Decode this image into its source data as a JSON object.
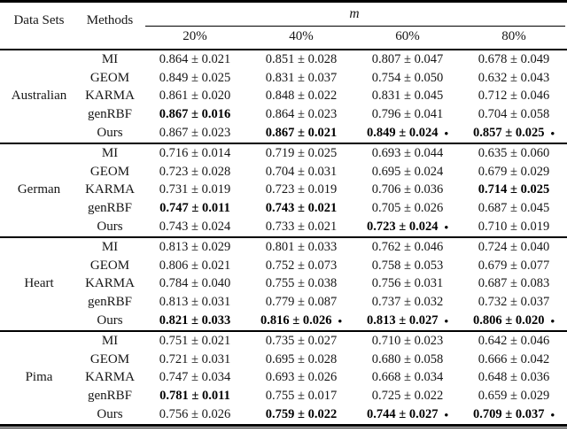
{
  "table": {
    "corner_headers": [
      "Data Sets",
      "Methods"
    ],
    "group_header": "m",
    "col_headers": [
      "20%",
      "40%",
      "60%",
      "80%"
    ],
    "dot_symbol": "•",
    "blocks": [
      {
        "dataset": "Australian",
        "rows": [
          {
            "method": "MI",
            "cells": [
              {
                "text": "0.864 ± 0.021",
                "bold": false,
                "dot": false
              },
              {
                "text": "0.851 ± 0.028",
                "bold": false,
                "dot": false
              },
              {
                "text": "0.807 ± 0.047",
                "bold": false,
                "dot": false
              },
              {
                "text": "0.678 ± 0.049",
                "bold": false,
                "dot": false
              }
            ]
          },
          {
            "method": "GEOM",
            "cells": [
              {
                "text": "0.849 ± 0.025",
                "bold": false,
                "dot": false
              },
              {
                "text": "0.831 ± 0.037",
                "bold": false,
                "dot": false
              },
              {
                "text": "0.754 ± 0.050",
                "bold": false,
                "dot": false
              },
              {
                "text": "0.632 ± 0.043",
                "bold": false,
                "dot": false
              }
            ]
          },
          {
            "method": "KARMA",
            "cells": [
              {
                "text": "0.861 ± 0.020",
                "bold": false,
                "dot": false
              },
              {
                "text": "0.848 ± 0.022",
                "bold": false,
                "dot": false
              },
              {
                "text": "0.831 ± 0.045",
                "bold": false,
                "dot": false
              },
              {
                "text": "0.712 ± 0.046",
                "bold": false,
                "dot": false
              }
            ]
          },
          {
            "method": "genRBF",
            "cells": [
              {
                "text": "0.867 ± 0.016",
                "bold": true,
                "dot": false
              },
              {
                "text": "0.864 ± 0.023",
                "bold": false,
                "dot": false
              },
              {
                "text": "0.796 ± 0.041",
                "bold": false,
                "dot": false
              },
              {
                "text": "0.704 ± 0.058",
                "bold": false,
                "dot": false
              }
            ]
          },
          {
            "method": "Ours",
            "cells": [
              {
                "text": "0.867 ± 0.023",
                "bold": false,
                "dot": false
              },
              {
                "text": "0.867 ± 0.021",
                "bold": true,
                "dot": false
              },
              {
                "text": "0.849 ± 0.024",
                "bold": true,
                "dot": true
              },
              {
                "text": "0.857 ± 0.025",
                "bold": true,
                "dot": true
              }
            ]
          }
        ]
      },
      {
        "dataset": "German",
        "rows": [
          {
            "method": "MI",
            "cells": [
              {
                "text": "0.716 ± 0.014",
                "bold": false,
                "dot": false
              },
              {
                "text": "0.719 ± 0.025",
                "bold": false,
                "dot": false
              },
              {
                "text": "0.693 ± 0.044",
                "bold": false,
                "dot": false
              },
              {
                "text": "0.635 ± 0.060",
                "bold": false,
                "dot": false
              }
            ]
          },
          {
            "method": "GEOM",
            "cells": [
              {
                "text": "0.723 ± 0.028",
                "bold": false,
                "dot": false
              },
              {
                "text": "0.704 ± 0.031",
                "bold": false,
                "dot": false
              },
              {
                "text": "0.695 ± 0.024",
                "bold": false,
                "dot": false
              },
              {
                "text": "0.679 ± 0.029",
                "bold": false,
                "dot": false
              }
            ]
          },
          {
            "method": "KARMA",
            "cells": [
              {
                "text": "0.731 ± 0.019",
                "bold": false,
                "dot": false
              },
              {
                "text": "0.723 ± 0.019",
                "bold": false,
                "dot": false
              },
              {
                "text": "0.706 ± 0.036",
                "bold": false,
                "dot": false
              },
              {
                "text": "0.714 ± 0.025",
                "bold": true,
                "dot": false
              }
            ]
          },
          {
            "method": "genRBF",
            "cells": [
              {
                "text": "0.747 ± 0.011",
                "bold": true,
                "dot": false
              },
              {
                "text": "0.743 ± 0.021",
                "bold": true,
                "dot": false
              },
              {
                "text": "0.705 ± 0.026",
                "bold": false,
                "dot": false
              },
              {
                "text": "0.687 ± 0.045",
                "bold": false,
                "dot": false
              }
            ]
          },
          {
            "method": "Ours",
            "cells": [
              {
                "text": "0.743 ± 0.024",
                "bold": false,
                "dot": false
              },
              {
                "text": "0.733 ± 0.021",
                "bold": false,
                "dot": false
              },
              {
                "text": "0.723 ± 0.024",
                "bold": true,
                "dot": true
              },
              {
                "text": "0.710 ± 0.019",
                "bold": false,
                "dot": false
              }
            ]
          }
        ]
      },
      {
        "dataset": "Heart",
        "rows": [
          {
            "method": "MI",
            "cells": [
              {
                "text": "0.813 ± 0.029",
                "bold": false,
                "dot": false
              },
              {
                "text": "0.801 ± 0.033",
                "bold": false,
                "dot": false
              },
              {
                "text": "0.762 ± 0.046",
                "bold": false,
                "dot": false
              },
              {
                "text": "0.724 ± 0.040",
                "bold": false,
                "dot": false
              }
            ]
          },
          {
            "method": "GEOM",
            "cells": [
              {
                "text": "0.806 ± 0.021",
                "bold": false,
                "dot": false
              },
              {
                "text": "0.752 ± 0.073",
                "bold": false,
                "dot": false
              },
              {
                "text": "0.758 ± 0.053",
                "bold": false,
                "dot": false
              },
              {
                "text": "0.679 ± 0.077",
                "bold": false,
                "dot": false
              }
            ]
          },
          {
            "method": "KARMA",
            "cells": [
              {
                "text": "0.784 ± 0.040",
                "bold": false,
                "dot": false
              },
              {
                "text": "0.755 ± 0.038",
                "bold": false,
                "dot": false
              },
              {
                "text": "0.756 ± 0.031",
                "bold": false,
                "dot": false
              },
              {
                "text": "0.687 ± 0.083",
                "bold": false,
                "dot": false
              }
            ]
          },
          {
            "method": "genRBF",
            "cells": [
              {
                "text": "0.813 ± 0.031",
                "bold": false,
                "dot": false
              },
              {
                "text": "0.779 ± 0.087",
                "bold": false,
                "dot": false
              },
              {
                "text": "0.737 ± 0.032",
                "bold": false,
                "dot": false
              },
              {
                "text": "0.732 ± 0.037",
                "bold": false,
                "dot": false
              }
            ]
          },
          {
            "method": "Ours",
            "cells": [
              {
                "text": "0.821 ± 0.033",
                "bold": true,
                "dot": false
              },
              {
                "text": "0.816 ± 0.026",
                "bold": true,
                "dot": true
              },
              {
                "text": "0.813 ± 0.027",
                "bold": true,
                "dot": true
              },
              {
                "text": "0.806 ± 0.020",
                "bold": true,
                "dot": true
              }
            ]
          }
        ]
      },
      {
        "dataset": "Pima",
        "rows": [
          {
            "method": "MI",
            "cells": [
              {
                "text": "0.751 ± 0.021",
                "bold": false,
                "dot": false
              },
              {
                "text": "0.735 ± 0.027",
                "bold": false,
                "dot": false
              },
              {
                "text": "0.710 ± 0.023",
                "bold": false,
                "dot": false
              },
              {
                "text": "0.642 ± 0.046",
                "bold": false,
                "dot": false
              }
            ]
          },
          {
            "method": "GEOM",
            "cells": [
              {
                "text": "0.721 ± 0.031",
                "bold": false,
                "dot": false
              },
              {
                "text": "0.695 ± 0.028",
                "bold": false,
                "dot": false
              },
              {
                "text": "0.680 ± 0.058",
                "bold": false,
                "dot": false
              },
              {
                "text": "0.666 ± 0.042",
                "bold": false,
                "dot": false
              }
            ]
          },
          {
            "method": "KARMA",
            "cells": [
              {
                "text": "0.747 ± 0.034",
                "bold": false,
                "dot": false
              },
              {
                "text": "0.693 ± 0.026",
                "bold": false,
                "dot": false
              },
              {
                "text": "0.668 ± 0.034",
                "bold": false,
                "dot": false
              },
              {
                "text": "0.648 ± 0.036",
                "bold": false,
                "dot": false
              }
            ]
          },
          {
            "method": "genRBF",
            "cells": [
              {
                "text": "0.781 ± 0.011",
                "bold": true,
                "dot": false
              },
              {
                "text": "0.755 ± 0.017",
                "bold": false,
                "dot": false
              },
              {
                "text": "0.725 ± 0.022",
                "bold": false,
                "dot": false
              },
              {
                "text": "0.659 ± 0.029",
                "bold": false,
                "dot": false
              }
            ]
          },
          {
            "method": "Ours",
            "cells": [
              {
                "text": "0.756 ± 0.026",
                "bold": false,
                "dot": false
              },
              {
                "text": "0.759 ± 0.022",
                "bold": true,
                "dot": false
              },
              {
                "text": "0.744 ± 0.027",
                "bold": true,
                "dot": true
              },
              {
                "text": "0.709 ± 0.037",
                "bold": true,
                "dot": true
              }
            ]
          }
        ]
      }
    ]
  }
}
